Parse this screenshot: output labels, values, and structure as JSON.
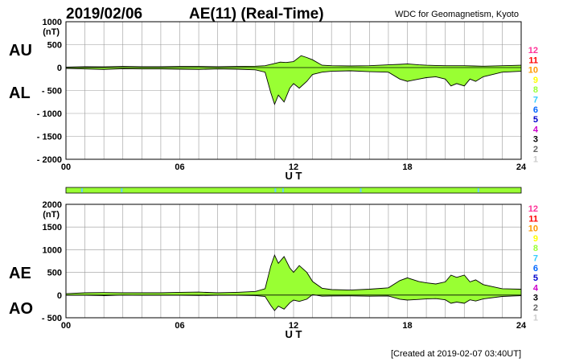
{
  "header": {
    "date": "2019/02/06",
    "title": "AE(11) (Real-Time)",
    "source": "WDC for Geomagnetism, Kyoto"
  },
  "footer": {
    "created": "[Created at 2019-02-07 03:40UT]"
  },
  "colors": {
    "fill": "#99ff33",
    "fill_alt": "#66ccff",
    "line": "#000000",
    "grid": "#999999"
  },
  "station_legend": [
    {
      "label": "12",
      "color": "#ff3399"
    },
    {
      "label": "11",
      "color": "#ff0000"
    },
    {
      "label": "10",
      "color": "#ff9900"
    },
    {
      "label": "9",
      "color": "#ffff00"
    },
    {
      "label": "8",
      "color": "#99ff33"
    },
    {
      "label": "7",
      "color": "#33ccff"
    },
    {
      "label": "6",
      "color": "#0066ff"
    },
    {
      "label": "5",
      "color": "#0000cc"
    },
    {
      "label": "4",
      "color": "#cc00cc"
    },
    {
      "label": "3",
      "color": "#000000"
    },
    {
      "label": "2",
      "color": "#666666"
    },
    {
      "label": "1",
      "color": "#cccccc"
    }
  ],
  "chart_data": [
    {
      "type": "area",
      "panel": "AU/AL",
      "labels": {
        "upper": "AU",
        "lower": "AL"
      },
      "unit": "(nT)",
      "xlabel": "U T",
      "xlim": [
        0,
        24
      ],
      "xticks": [
        0,
        6,
        12,
        18,
        24
      ],
      "xtick_labels": [
        "00",
        "06",
        "12",
        "18",
        "24"
      ],
      "ylim": [
        -2000,
        1000
      ],
      "yticks": [
        1000,
        500,
        0,
        -500,
        -1000,
        -1500,
        -2000
      ],
      "ytick_labels": [
        "1000",
        "500",
        "0",
        "- 500",
        "- 1000",
        "- 1500",
        "- 2000"
      ],
      "grid": true,
      "series": [
        {
          "name": "AU",
          "x": [
            0,
            1,
            2,
            3,
            4,
            5,
            6,
            7,
            8,
            9,
            10,
            10.5,
            11,
            11.3,
            11.6,
            12,
            12.4,
            12.7,
            13,
            13.5,
            14,
            15,
            16,
            17,
            17.6,
            18,
            18.6,
            19,
            19.5,
            20,
            20.5,
            21,
            21.5,
            22,
            23,
            24
          ],
          "values": [
            10,
            20,
            15,
            25,
            20,
            20,
            25,
            25,
            20,
            25,
            30,
            40,
            90,
            120,
            110,
            130,
            260,
            220,
            170,
            50,
            40,
            35,
            40,
            60,
            70,
            80,
            60,
            50,
            45,
            40,
            40,
            40,
            35,
            30,
            40,
            50
          ]
        },
        {
          "name": "AL",
          "x": [
            0,
            1,
            2,
            3,
            4,
            5,
            6,
            7,
            8,
            9,
            10,
            10.5,
            10.8,
            11,
            11.2,
            11.5,
            11.8,
            12,
            12.3,
            12.7,
            13,
            13.5,
            14,
            15,
            16,
            17,
            17.6,
            18,
            18.6,
            19,
            19.5,
            20,
            20.3,
            20.6,
            21,
            21.3,
            21.6,
            22,
            23,
            24
          ],
          "values": [
            -20,
            -30,
            -40,
            -25,
            -30,
            -30,
            -35,
            -40,
            -30,
            -35,
            -50,
            -100,
            -550,
            -800,
            -600,
            -750,
            -450,
            -350,
            -450,
            -300,
            -150,
            -100,
            -80,
            -70,
            -90,
            -100,
            -250,
            -300,
            -250,
            -220,
            -200,
            -250,
            -400,
            -350,
            -400,
            -250,
            -300,
            -200,
            -100,
            -80
          ]
        }
      ]
    },
    {
      "type": "area",
      "panel": "AE/AO",
      "labels": {
        "upper": "AE",
        "lower": "AO"
      },
      "unit": "(nT)",
      "xlabel": "U T",
      "xlim": [
        0,
        24
      ],
      "xticks": [
        0,
        6,
        12,
        18,
        24
      ],
      "xtick_labels": [
        "00",
        "06",
        "12",
        "18",
        "24"
      ],
      "ylim": [
        -500,
        2000
      ],
      "yticks": [
        2000,
        1500,
        1000,
        500,
        0,
        -500
      ],
      "ytick_labels": [
        "2000",
        "1500",
        "1000",
        "500",
        "0",
        "- 500"
      ],
      "grid": true,
      "series": [
        {
          "name": "AE",
          "x": [
            0,
            1,
            2,
            3,
            4,
            5,
            6,
            7,
            8,
            9,
            10,
            10.5,
            10.8,
            11,
            11.2,
            11.5,
            11.8,
            12,
            12.3,
            12.7,
            13,
            13.5,
            14,
            15,
            16,
            17,
            17.6,
            18,
            18.6,
            19,
            19.5,
            20,
            20.3,
            20.6,
            21,
            21.3,
            21.6,
            22,
            23,
            24
          ],
          "values": [
            30,
            50,
            55,
            50,
            50,
            50,
            60,
            65,
            50,
            60,
            80,
            140,
            640,
            880,
            700,
            850,
            600,
            500,
            650,
            500,
            300,
            150,
            120,
            110,
            130,
            160,
            320,
            380,
            300,
            270,
            245,
            290,
            440,
            390,
            440,
            290,
            335,
            230,
            140,
            130
          ]
        },
        {
          "name": "AO",
          "x": [
            0,
            1,
            2,
            3,
            4,
            5,
            6,
            7,
            8,
            9,
            10,
            10.5,
            10.8,
            11,
            11.2,
            11.5,
            11.8,
            12,
            12.3,
            12.7,
            13,
            13.5,
            14,
            15,
            16,
            17,
            17.6,
            18,
            18.6,
            19,
            19.5,
            20,
            20.3,
            20.6,
            21,
            21.3,
            21.6,
            22,
            23,
            24
          ],
          "values": [
            -5,
            -5,
            -12,
            0,
            -5,
            -5,
            -5,
            -8,
            -5,
            -5,
            -10,
            -30,
            -230,
            -340,
            -245,
            -310,
            -170,
            -110,
            -140,
            -90,
            10,
            -25,
            -20,
            -17,
            -25,
            -20,
            -90,
            -110,
            -95,
            -85,
            -78,
            -105,
            -180,
            -155,
            -180,
            -105,
            -132,
            -85,
            -30,
            -15
          ]
        }
      ]
    }
  ]
}
